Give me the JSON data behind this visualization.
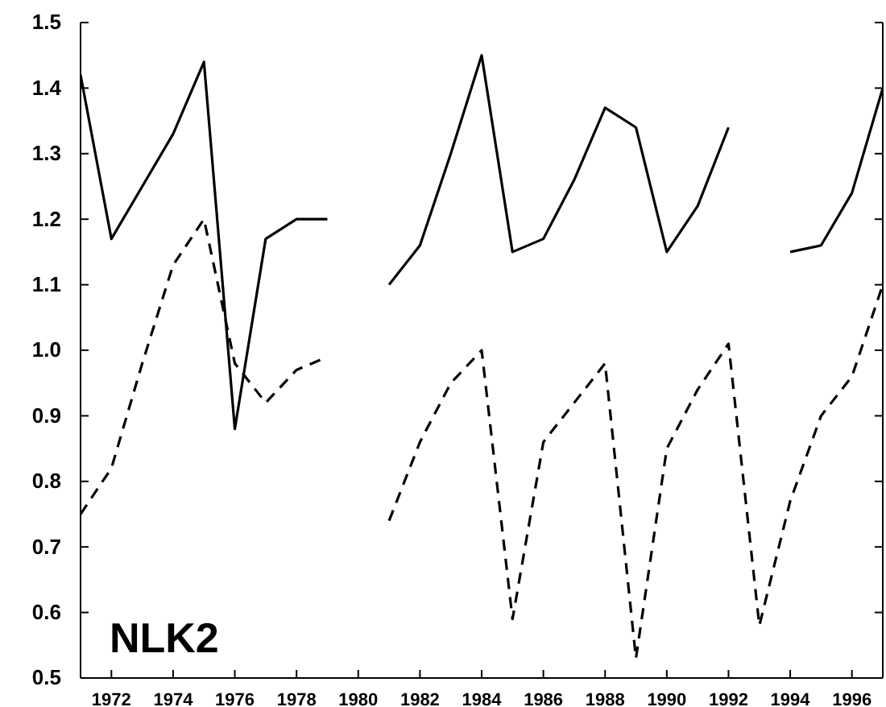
{
  "chart_data": {
    "type": "line",
    "x": [
      1971,
      1972,
      1973,
      1974,
      1975,
      1976,
      1977,
      1978,
      1979,
      1980,
      1981,
      1982,
      1983,
      1984,
      1985,
      1986,
      1987,
      1988,
      1989,
      1990,
      1991,
      1992,
      1993,
      1994,
      1995,
      1996,
      1997
    ],
    "series": [
      {
        "color": "#000000",
        "line_style": "solid",
        "values": [
          1.42,
          1.17,
          1.25,
          1.33,
          1.44,
          0.88,
          1.17,
          1.2,
          1.2,
          null,
          1.1,
          1.16,
          1.3,
          1.45,
          1.15,
          1.17,
          1.26,
          1.37,
          1.34,
          1.15,
          1.22,
          1.34,
          null,
          1.15,
          1.16,
          1.24,
          1.4
        ]
      },
      {
        "color": "#000000",
        "line_style": "dashed",
        "values": [
          0.75,
          0.82,
          0.98,
          1.13,
          1.2,
          0.98,
          0.92,
          0.97,
          0.99,
          null,
          0.74,
          0.86,
          0.95,
          1.0,
          0.59,
          0.86,
          0.92,
          0.98,
          0.53,
          0.85,
          0.94,
          1.01,
          0.58,
          0.77,
          0.9,
          0.96,
          1.1
        ]
      }
    ],
    "xlim": [
      1971,
      1997
    ],
    "xticks": [
      1972,
      1974,
      1976,
      1978,
      1980,
      1982,
      1984,
      1986,
      1988,
      1990,
      1992,
      1994,
      1996
    ],
    "ylim": [
      0.5,
      1.5
    ],
    "yticks": [
      {
        "value": 0.5,
        "label": "0.5"
      },
      {
        "value": 0.6,
        "label": "0.6"
      },
      {
        "value": 0.7,
        "label": "0.7"
      },
      {
        "value": 0.8,
        "label": "0.8"
      },
      {
        "value": 0.9,
        "label": "0.9"
      },
      {
        "value": 1.0,
        "label": "1.0"
      },
      {
        "value": 1.1,
        "label": "1.1"
      },
      {
        "value": 1.2,
        "label": "1.2"
      },
      {
        "value": 1.3,
        "label": "1.3"
      },
      {
        "value": 1.4,
        "label": "1.4"
      },
      {
        "value": 1.5,
        "label": "1.5"
      }
    ],
    "annotations": [
      "NLK2"
    ],
    "grid": false
  }
}
